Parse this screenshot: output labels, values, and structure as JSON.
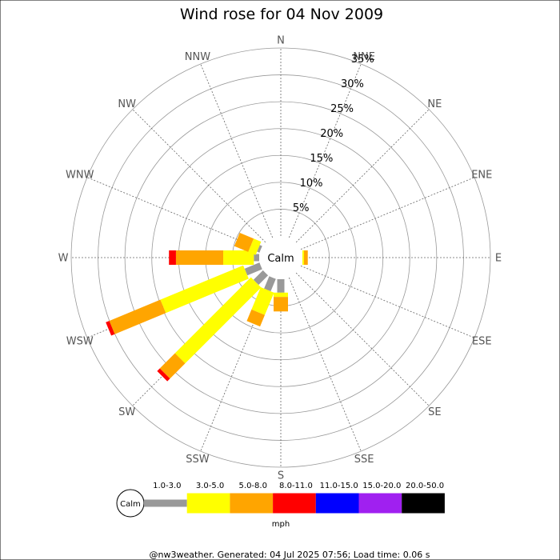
{
  "chart_data": {
    "type": "wind-rose",
    "title": "Wind rose for 04 Nov 2009",
    "directions": [
      "N",
      "NNE",
      "NE",
      "ENE",
      "E",
      "ESE",
      "SE",
      "SSE",
      "S",
      "SSW",
      "SW",
      "WSW",
      "W",
      "WNW",
      "NW",
      "NNW"
    ],
    "radial_ticks": [
      5,
      10,
      15,
      20,
      25,
      30,
      35
    ],
    "radial_tick_labels": [
      "5%",
      "10%",
      "15%",
      "20%",
      "25%",
      "30%",
      "35%"
    ],
    "radial_max": 35,
    "calm_label": "Calm",
    "speed_bins": [
      {
        "label": "1.0-3.0",
        "color": "#999999"
      },
      {
        "label": "3.0-5.0",
        "color": "#ffff00"
      },
      {
        "label": "5.0-8.0",
        "color": "#ffa500"
      },
      {
        "label": "8.0-11.0",
        "color": "#ff0000"
      },
      {
        "label": "11.0-15.0",
        "color": "#0000ff"
      },
      {
        "label": "15.0-20.0",
        "color": "#a020f0"
      },
      {
        "label": "20.0-50.0",
        "color": "#000000"
      }
    ],
    "units": "mph",
    "series": [
      {
        "direction": "E",
        "cumulative": [
          0.0,
          0.3,
          1.0,
          1.0,
          1.0,
          1.0,
          1.0
        ]
      },
      {
        "direction": "S",
        "cumulative": [
          2.5,
          3.3,
          6.0,
          6.0,
          6.0,
          6.0,
          6.0
        ]
      },
      {
        "direction": "SSW",
        "cumulative": [
          2.5,
          7.0,
          9.3,
          9.3,
          9.3,
          9.3,
          9.3
        ]
      },
      {
        "direction": "SW",
        "cumulative": [
          2.5,
          22.5,
          26.5,
          27.2,
          27.2,
          27.2,
          27.2
        ]
      },
      {
        "direction": "WSW",
        "cumulative": [
          3.0,
          19.7,
          30.0,
          30.7,
          30.7,
          30.7,
          30.7
        ]
      },
      {
        "direction": "W",
        "cumulative": [
          1.0,
          6.7,
          15.5,
          16.8,
          16.8,
          16.8,
          16.8
        ]
      },
      {
        "direction": "WNW",
        "cumulative": [
          0.5,
          2.0,
          4.8,
          4.8,
          4.8,
          4.8,
          4.8
        ]
      }
    ]
  },
  "footer": "@nw3weather. Generated: 04 Jul 2025 07:56; Load time: 0.06 s"
}
